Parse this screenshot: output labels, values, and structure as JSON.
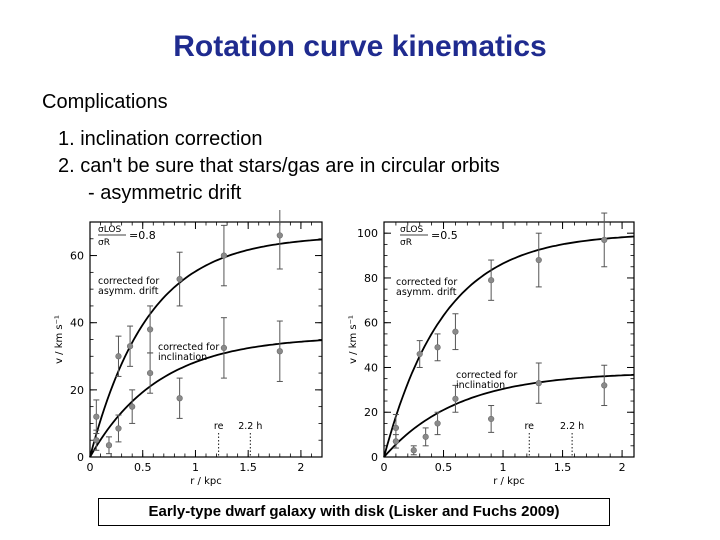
{
  "slide": {
    "title": "Rotation curve kinematics",
    "subtitle": "Complications",
    "items": [
      "1. inclination correction",
      "2. can't be sure that stars/gas are in circular orbits",
      "- asymmetric drift"
    ],
    "caption": "Early-type dwarf galaxy with disk (Lisker and Fuchs 2009)"
  },
  "chart_data": [
    {
      "type": "scatter",
      "xlabel": "r / kpc",
      "ylabel": "v / km s⁻¹",
      "xlim": [
        0,
        2.2
      ],
      "ylim": [
        0,
        70
      ],
      "xticks": [
        0,
        0.5,
        1,
        1.5,
        2
      ],
      "yticks": [
        0,
        20,
        40,
        60
      ],
      "xtick_labels": [
        "0",
        "0.5",
        "1",
        "1.5",
        "2"
      ],
      "ytick_labels": [
        "0",
        "20",
        "40",
        "60"
      ],
      "ratio_label": {
        "num": "σLOS",
        "den": "σR",
        "value": "=0.8"
      },
      "markers": [
        {
          "label": "re",
          "x": 1.22
        },
        {
          "label": "2.2 h",
          "x": 1.52
        }
      ],
      "series": [
        {
          "name": "corrected for asymm. drift",
          "points": [
            [
              0.06,
              12
            ],
            [
              0.27,
              30
            ],
            [
              0.38,
              33
            ],
            [
              0.57,
              38
            ],
            [
              0.85,
              53
            ],
            [
              1.27,
              60
            ],
            [
              1.8,
              66
            ]
          ],
          "errors": [
            5,
            6,
            6,
            7,
            8,
            9,
            10
          ],
          "model": {
            "vmax": 66,
            "rscale": 0.55
          }
        },
        {
          "name": "corrected for inclination",
          "points": [
            [
              0.06,
              5
            ],
            [
              0.18,
              3.5
            ],
            [
              0.27,
              8.5
            ],
            [
              0.4,
              15
            ],
            [
              0.57,
              25
            ],
            [
              0.85,
              17.5
            ],
            [
              1.27,
              32.5
            ],
            [
              1.8,
              31.5
            ]
          ],
          "errors": [
            3,
            2.5,
            4,
            5,
            6,
            6,
            9,
            9
          ],
          "model": {
            "vmax": 36,
            "rscale": 0.65
          }
        }
      ]
    },
    {
      "type": "scatter",
      "xlabel": "r / kpc",
      "ylabel": "v / km s⁻¹",
      "xlim": [
        0,
        2.1
      ],
      "ylim": [
        0,
        105
      ],
      "xticks": [
        0,
        0.5,
        1,
        1.5,
        2
      ],
      "yticks": [
        0,
        20,
        40,
        60,
        80,
        100
      ],
      "xtick_labels": [
        "0",
        "0.5",
        "1",
        "1.5",
        "2"
      ],
      "ytick_labels": [
        "0",
        "20",
        "40",
        "60",
        "80",
        "100"
      ],
      "ratio_label": {
        "num": "σLOS",
        "den": "σR",
        "value": "=0.5"
      },
      "markers": [
        {
          "label": "re",
          "x": 1.22
        },
        {
          "label": "2.2 h",
          "x": 1.58
        }
      ],
      "series": [
        {
          "name": "corrected for asymm. drift",
          "points": [
            [
              0.1,
              13
            ],
            [
              0.3,
              46
            ],
            [
              0.45,
              49
            ],
            [
              0.6,
              56
            ],
            [
              0.9,
              79
            ],
            [
              1.3,
              88
            ],
            [
              1.85,
              97
            ]
          ],
          "errors": [
            6,
            6,
            6,
            8,
            9,
            12,
            12
          ],
          "model": {
            "vmax": 100,
            "rscale": 0.5
          }
        },
        {
          "name": "corrected for inclination",
          "points": [
            [
              0.1,
              7
            ],
            [
              0.25,
              3
            ],
            [
              0.35,
              9
            ],
            [
              0.45,
              15
            ],
            [
              0.6,
              26
            ],
            [
              0.9,
              17
            ],
            [
              1.3,
              33
            ],
            [
              1.85,
              32
            ]
          ],
          "errors": [
            3,
            2,
            4,
            5,
            6,
            6,
            9,
            9
          ],
          "model": {
            "vmax": 38,
            "rscale": 0.62
          }
        }
      ]
    }
  ]
}
